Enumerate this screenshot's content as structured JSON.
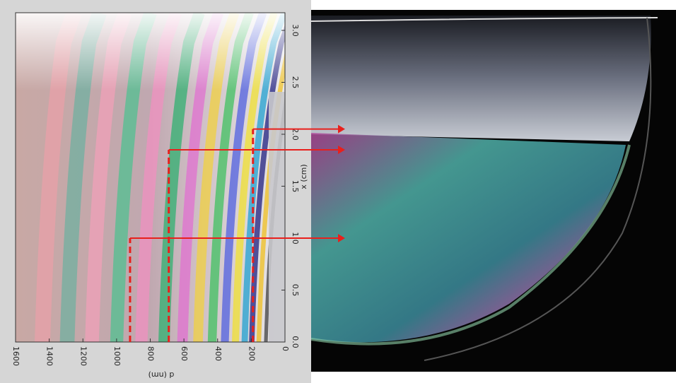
{
  "chart_data": {
    "type": "image",
    "xlabel": "d (nm)",
    "ylabel": "x (cm)",
    "xlim": [
      1600,
      0
    ],
    "xticks": [
      1600,
      1400,
      1200,
      1000,
      800,
      600,
      400,
      200,
      0
    ],
    "ylim": [
      0,
      3.17
    ],
    "yticks": [
      {
        "value": 0,
        "label": "0.0"
      },
      0.5,
      {
        "value": 1,
        "label": "1.0"
      },
      1.5,
      {
        "value": 2,
        "label": "2.0"
      },
      2.5,
      {
        "value": 3,
        "label": "3.0"
      }
    ],
    "markers": {
      "color": "#e8201c",
      "x": [
        920,
        690,
        190
      ],
      "y": [
        1.0,
        1.85,
        2.05
      ]
    }
  }
}
